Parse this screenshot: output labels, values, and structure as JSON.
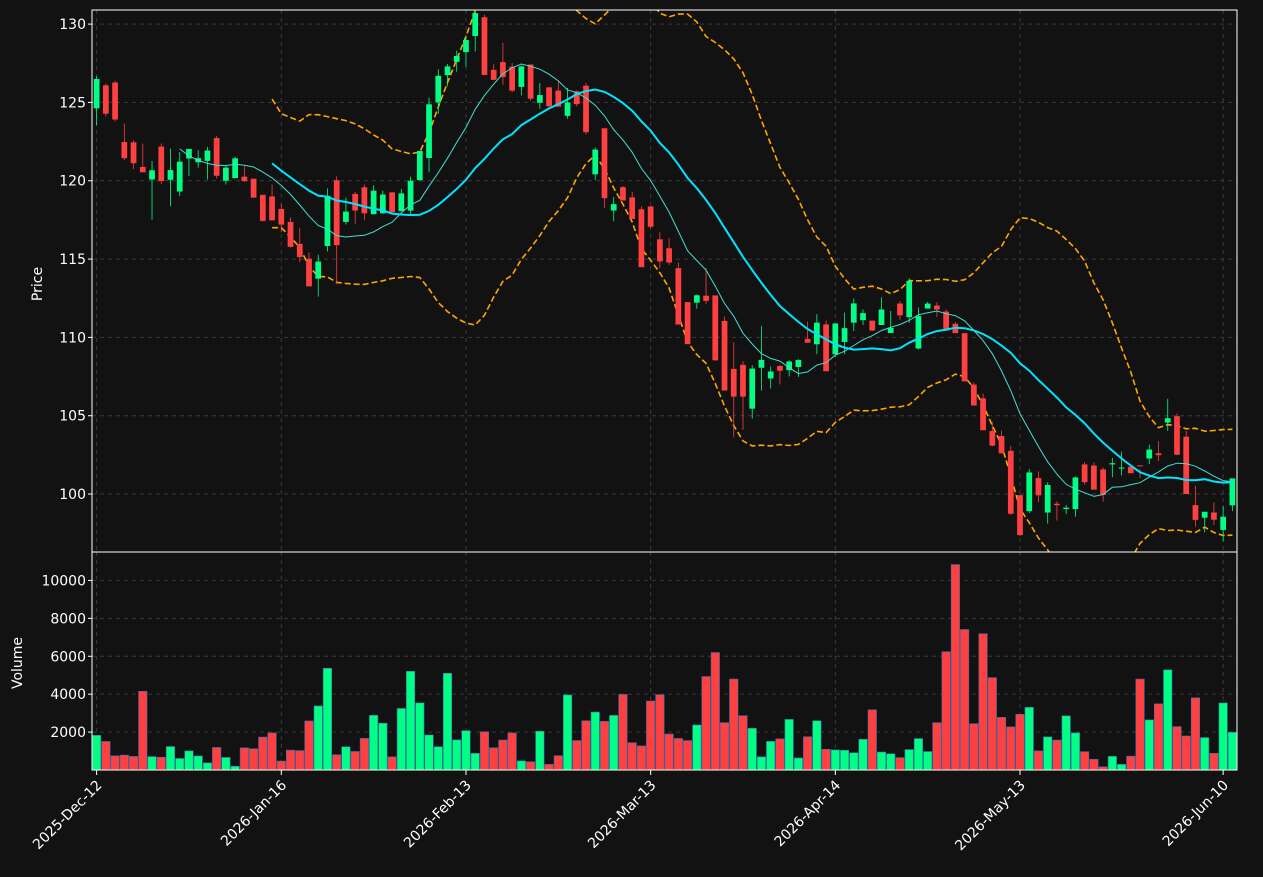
{
  "colors": {
    "background": "#121212",
    "up": "#00ff84",
    "down": "#ff4040",
    "ma_fast": "#40e0d0",
    "ma_slow": "#00e5ff",
    "band": "#ffa500",
    "grid": "#3a3a3a",
    "frame": "#ffffff",
    "text": "#ffffff"
  },
  "chart_data": {
    "type": "candlestick",
    "price_ylabel": "Price",
    "volume_ylabel": "Volume",
    "price_ylim": [
      96.3,
      130.9
    ],
    "volume_ylim": [
      0,
      11500
    ],
    "price_yticks": [
      100,
      105,
      110,
      115,
      120,
      125,
      130
    ],
    "volume_yticks": [
      2000,
      4000,
      6000,
      8000,
      10000
    ],
    "grid": true,
    "xtick_indices": [
      0,
      20,
      40,
      60,
      80,
      100,
      122
    ],
    "xtick_labels": [
      "2025-Dec-12",
      "2026-Jan-16",
      "2026-Feb-13",
      "2026-Mar-13",
      "2026-Apr-14",
      "2026-May-13",
      "2026-Jun-10"
    ],
    "ohlcv": [
      [
        124.62,
        126.68,
        123.54,
        126.5,
        1829
      ],
      [
        126.09,
        126.2,
        124.1,
        124.28,
        1506
      ],
      [
        126.27,
        126.37,
        123.78,
        123.91,
        747
      ],
      [
        122.47,
        123.65,
        121.32,
        121.44,
        784
      ],
      [
        122.45,
        122.57,
        120.75,
        121.12,
        715
      ],
      [
        120.88,
        122.37,
        120.7,
        120.54,
        4152
      ],
      [
        120.08,
        121.26,
        117.52,
        120.67,
        707
      ],
      [
        122.18,
        122.38,
        119.78,
        119.98,
        673
      ],
      [
        120.06,
        122.06,
        118.37,
        120.68,
        1238
      ],
      [
        119.31,
        121.83,
        119.02,
        121.22,
        608
      ],
      [
        121.42,
        121.96,
        120.3,
        122.03,
        1009
      ],
      [
        121.18,
        121.95,
        120.83,
        121.44,
        742
      ],
      [
        121.27,
        122.16,
        120.08,
        121.93,
        380
      ],
      [
        122.72,
        122.86,
        120.14,
        120.32,
        1189
      ],
      [
        120.0,
        121.0,
        119.76,
        120.84,
        662
      ],
      [
        120.17,
        121.52,
        120.36,
        121.43,
        195
      ],
      [
        120.26,
        120.92,
        119.93,
        119.97,
        1167
      ],
      [
        120.13,
        120.1,
        119.01,
        118.92,
        1120
      ],
      [
        119.1,
        118.98,
        117.4,
        117.44,
        1738
      ],
      [
        119.0,
        119.75,
        117.49,
        117.47,
        1955
      ],
      [
        118.2,
        118.52,
        116.72,
        117.2,
        470
      ],
      [
        117.37,
        117.67,
        115.74,
        115.78,
        1047
      ],
      [
        115.97,
        116.98,
        114.81,
        115.13,
        1024
      ],
      [
        115.02,
        115.43,
        113.24,
        113.26,
        2587
      ],
      [
        113.75,
        115.28,
        112.6,
        114.84,
        3380
      ],
      [
        115.83,
        119.51,
        115.49,
        119.04,
        5368
      ],
      [
        120.03,
        120.28,
        113.39,
        115.89,
        805
      ],
      [
        117.37,
        118.92,
        117.21,
        118.03,
        1225
      ],
      [
        119.16,
        119.3,
        117.26,
        118.1,
        977
      ],
      [
        119.58,
        119.75,
        117.48,
        117.92,
        1668
      ],
      [
        117.86,
        119.71,
        117.97,
        119.37,
        2886
      ],
      [
        117.92,
        119.36,
        117.91,
        119.12,
        2469
      ],
      [
        119.26,
        119.22,
        117.92,
        117.99,
        693
      ],
      [
        118.06,
        119.47,
        118.25,
        119.19,
        3247
      ],
      [
        118.09,
        120.26,
        117.86,
        120.0,
        5209
      ],
      [
        120.04,
        121.92,
        119.99,
        121.9,
        3541
      ],
      [
        121.45,
        125.3,
        120.54,
        124.88,
        1847
      ],
      [
        125.0,
        127.12,
        124.28,
        126.7,
        1231
      ],
      [
        126.74,
        127.46,
        126.03,
        127.3,
        5101
      ],
      [
        127.59,
        128.31,
        126.96,
        127.97,
        1589
      ],
      [
        128.21,
        129.23,
        127.28,
        128.98,
        2077
      ],
      [
        129.24,
        130.8,
        128.25,
        130.7,
        879
      ],
      [
        130.44,
        130.59,
        126.75,
        126.75,
        2016
      ],
      [
        127.08,
        127.43,
        126.48,
        126.44,
        1172
      ],
      [
        127.57,
        128.81,
        126.11,
        126.62,
        1581
      ],
      [
        127.28,
        127.52,
        125.65,
        125.75,
        1955
      ],
      [
        125.99,
        127.33,
        125.45,
        127.3,
        482
      ],
      [
        127.42,
        127.38,
        125.12,
        125.24,
        436
      ],
      [
        124.98,
        126.23,
        124.6,
        125.47,
        2046
      ],
      [
        125.96,
        126.0,
        124.68,
        124.76,
        298
      ],
      [
        125.75,
        126.39,
        124.92,
        124.73,
        755
      ],
      [
        124.14,
        125.92,
        123.96,
        125.0,
        3960
      ],
      [
        125.71,
        125.77,
        124.75,
        124.89,
        1555
      ],
      [
        126.07,
        126.25,
        122.96,
        123.1,
        2597
      ],
      [
        120.41,
        122.13,
        120.05,
        121.99,
        3057
      ],
      [
        123.35,
        123.09,
        118.26,
        118.89,
        2570
      ],
      [
        118.1,
        118.97,
        117.4,
        118.51,
        2881
      ],
      [
        119.59,
        119.66,
        118.79,
        118.74,
        3987
      ],
      [
        118.94,
        119.3,
        117.63,
        117.56,
        1437
      ],
      [
        118.18,
        118.36,
        114.53,
        114.48,
        1270
      ],
      [
        118.36,
        118.08,
        116.96,
        117.06,
        3640
      ],
      [
        116.26,
        116.72,
        114.41,
        114.85,
        3971
      ],
      [
        115.69,
        116.35,
        114.63,
        114.78,
        1897
      ],
      [
        114.42,
        114.78,
        110.86,
        110.82,
        1665
      ],
      [
        112.25,
        112.14,
        109.58,
        109.57,
        1552
      ],
      [
        112.22,
        112.75,
        111.83,
        112.69,
        2376
      ],
      [
        112.66,
        114.43,
        112.14,
        112.33,
        4931
      ],
      [
        112.68,
        112.66,
        108.5,
        108.54,
        6197
      ],
      [
        111.05,
        111.33,
        106.68,
        106.61,
        2498
      ],
      [
        107.99,
        109.67,
        103.62,
        106.22,
        4798
      ],
      [
        108.25,
        108.49,
        104.1,
        106.22,
        2866
      ],
      [
        105.45,
        108.22,
        104.82,
        108.01,
        2200
      ],
      [
        108.06,
        110.72,
        106.61,
        108.56,
        697
      ],
      [
        107.38,
        108.14,
        106.74,
        107.82,
        1511
      ],
      [
        108.18,
        108.21,
        107.0,
        107.87,
        1645
      ],
      [
        107.91,
        108.54,
        107.51,
        108.46,
        2670
      ],
      [
        108.11,
        108.61,
        107.48,
        108.56,
        635
      ],
      [
        109.9,
        111.0,
        109.77,
        109.66,
        1755
      ],
      [
        109.56,
        111.49,
        108.93,
        110.94,
        2598
      ],
      [
        110.83,
        111.08,
        107.95,
        107.84,
        1091
      ],
      [
        108.93,
        110.76,
        108.77,
        110.89,
        1061
      ],
      [
        109.71,
        111.58,
        108.92,
        110.59,
        1043
      ],
      [
        110.94,
        112.49,
        110.4,
        112.17,
        909
      ],
      [
        111.1,
        111.78,
        110.79,
        111.55,
        1622
      ],
      [
        111.07,
        110.68,
        110.41,
        110.44,
        3175
      ],
      [
        110.79,
        112.56,
        110.95,
        111.78,
        949
      ],
      [
        110.28,
        111.69,
        110.56,
        110.61,
        857
      ],
      [
        112.16,
        112.32,
        111.13,
        111.41,
        652
      ],
      [
        111.29,
        113.77,
        110.94,
        113.6,
        1079
      ],
      [
        109.29,
        111.91,
        109.22,
        111.36,
        1660
      ],
      [
        111.84,
        112.26,
        111.98,
        112.16,
        975
      ],
      [
        112.03,
        112.24,
        111.31,
        111.78,
        2497
      ],
      [
        111.65,
        111.79,
        110.48,
        110.43,
        6239
      ],
      [
        110.87,
        110.98,
        110.47,
        110.27,
        10839
      ],
      [
        110.27,
        108.95,
        108.9,
        107.19,
        7412
      ],
      [
        106.99,
        107.15,
        105.75,
        105.65,
        2445
      ],
      [
        106.11,
        106.42,
        104.58,
        104.07,
        7189
      ],
      [
        104.02,
        104.61,
        103.05,
        103.09,
        4874
      ],
      [
        103.7,
        104.05,
        102.77,
        102.6,
        2775
      ],
      [
        102.76,
        103.07,
        98.68,
        98.74,
        2274
      ],
      [
        99.93,
        99.87,
        97.31,
        97.38,
        2939
      ],
      [
        98.91,
        101.6,
        98.79,
        101.38,
        3305
      ],
      [
        101.02,
        101.44,
        99.48,
        99.92,
        1008
      ],
      [
        98.82,
        100.75,
        98.11,
        100.58,
        1749
      ],
      [
        99.38,
        99.53,
        98.31,
        99.29,
        1579
      ],
      [
        99.04,
        99.3,
        98.73,
        99.13,
        2857
      ],
      [
        99.04,
        101.12,
        98.55,
        101.06,
        1957
      ],
      [
        101.89,
        102.05,
        100.6,
        100.76,
        968
      ],
      [
        101.82,
        102.02,
        100.3,
        100.28,
        565
      ],
      [
        101.57,
        101.69,
        99.51,
        99.94,
        168
      ],
      [
        101.89,
        102.3,
        101.08,
        101.97,
        720
      ],
      [
        101.63,
        102.71,
        101.19,
        101.69,
        296
      ],
      [
        101.74,
        101.81,
        101.37,
        101.33,
        730
      ],
      [
        101.83,
        101.59,
        101.02,
        101.79,
        4797
      ],
      [
        102.27,
        103.15,
        101.92,
        102.84,
        2643
      ],
      [
        102.6,
        103.37,
        102.11,
        102.48,
        3489
      ],
      [
        104.56,
        106.08,
        104.02,
        104.84,
        5284
      ],
      [
        104.97,
        105.15,
        102.48,
        102.51,
        2287
      ],
      [
        103.66,
        104.04,
        100.02,
        100.0,
        1794
      ],
      [
        99.29,
        100.53,
        97.92,
        98.35,
        3808
      ],
      [
        98.49,
        98.84,
        97.55,
        98.87,
        1712
      ],
      [
        98.82,
        99.47,
        98.02,
        98.36,
        880
      ],
      [
        97.71,
        99.25,
        96.97,
        98.55,
        3538
      ],
      [
        99.28,
        99.31,
        98.91,
        101.0,
        1993
      ]
    ]
  }
}
